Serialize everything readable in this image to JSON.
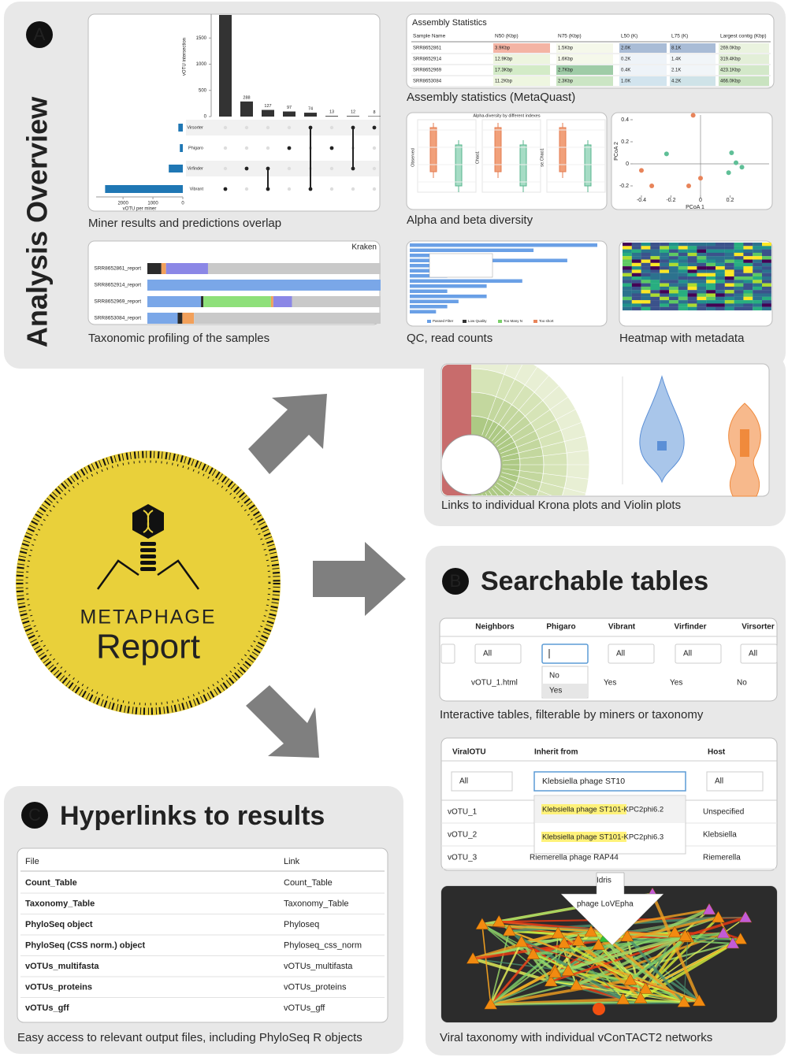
{
  "panel_a": {
    "letter": "A",
    "title": "Analysis Overview",
    "captions": [
      "Miner results and predictions overlap",
      "Assembly statistics (MetaQuast)",
      "Alpha and beta diversity",
      "Taxonomic profiling of the samples",
      "QC, read counts",
      "Heatmap with metadata",
      "Links to individual Krona plots and Violin plots"
    ],
    "upset": {
      "type": "bar",
      "y_label": "vOTU intersection",
      "ylim": [
        0,
        2000
      ],
      "yticks": [
        0,
        500,
        1000,
        1500
      ],
      "values": [
        1940,
        288,
        127,
        97,
        74,
        13,
        12,
        8
      ],
      "value_labels": [
        null,
        "288",
        "127",
        "97",
        "74",
        "13",
        "12",
        "8"
      ],
      "color": "#333333",
      "sets": {
        "type": "bar",
        "categories": [
          "Virsorter",
          "Phigaro",
          "Virfinder",
          "Vibrant"
        ],
        "values": [
          150,
          100,
          470,
          2600
        ],
        "xlim": [
          0,
          2900
        ],
        "xticks": [
          0,
          1000,
          2000
        ],
        "x_label": "vOTU per miner",
        "color": "#1f77b4"
      }
    },
    "assembly": {
      "title": "Assembly Statistics",
      "headers": [
        "Sample Name",
        "N50 (Kbp)",
        "N75 (Kbp)",
        "L50 (K)",
        "L75 (K)",
        "Largest contig (Kbp)"
      ],
      "rows": [
        [
          "SRR8652861",
          "3.9Kbp",
          "1.5Kbp",
          "2.0K",
          "8.1K",
          "269.0Kbp"
        ],
        [
          "SRR8652914",
          "12.9Kbp",
          "1.6Kbp",
          "0.2K",
          "1.4K",
          "319.4Kbp"
        ],
        [
          "SRR8652969",
          "17.3Kbp",
          "2.7Kbp",
          "0.4K",
          "2.1K",
          "423.1Kbp"
        ],
        [
          "SRR8653084",
          "11.2Kbp",
          "2.3Kbp",
          "1.0K",
          "4.2K",
          "466.0Kbp"
        ]
      ],
      "cell_colors": [
        [
          "#f4b4a4",
          "#f5f8ea",
          "#a9bcd6",
          "#a9bcd6",
          "#eaf3df"
        ],
        [
          "#edf5df",
          "#f5f8ea",
          "#eef3f8",
          "#f1f5f8",
          "#e3efd8"
        ],
        [
          "#d3ebc7",
          "#9fcca7",
          "#eef3f8",
          "#f1f5f8",
          "#d3e8c9"
        ],
        [
          "#eef6e0",
          "#cbe5c4",
          "#d2e4ee",
          "#cfe3e8",
          "#c9e3c0"
        ]
      ]
    },
    "alpha": {
      "title": "Alpha-diversity by different indexes",
      "y_labels": [
        "Observed",
        "Chao1",
        "se.Chao1"
      ]
    },
    "pcoa": {
      "type": "scatter",
      "x_label": "PCoA 1",
      "y_label": "PCoA 2",
      "xlim": [
        -0.45,
        0.45
      ],
      "ylim": [
        -0.3,
        0.45
      ],
      "xticks": [
        -0.4,
        -0.2,
        0,
        0.2
      ],
      "yticks": [
        -0.2,
        0,
        0.2,
        0.4
      ],
      "series": [
        {
          "color": "#e8845a",
          "x": [
            -0.05,
            -0.4,
            -0.33,
            -0.08,
            0
          ],
          "values": [
            0.44,
            -0.06,
            -0.2,
            -0.2,
            -0.13
          ]
        },
        {
          "color": "#5fbf97",
          "x": [
            -0.23,
            0.21,
            0.24,
            0.28,
            0.19
          ],
          "values": [
            0.09,
            0.1,
            0.01,
            -0.03,
            -0.08
          ]
        }
      ]
    },
    "kraken": {
      "type": "bar",
      "title": "Kraken",
      "categories": [
        "SRR8652861_report",
        "SRR8652914_report",
        "SRR8652969_report",
        "SRR8653084_report"
      ],
      "xlim": [
        0,
        100
      ],
      "series": [
        {
          "color": "#7aa7e8",
          "values": [
            0,
            100,
            23,
            13
          ]
        },
        {
          "color": "#2b2b2b",
          "values": [
            6,
            0,
            1,
            2
          ]
        },
        {
          "color": "#8ee07a",
          "values": [
            0,
            0,
            29,
            0
          ]
        },
        {
          "color": "#f2a05a",
          "values": [
            2,
            0,
            1,
            5
          ]
        },
        {
          "color": "#8b87e6",
          "values": [
            18,
            0,
            8,
            0
          ]
        },
        {
          "color": "#c9c9c9",
          "values": [
            74,
            0,
            38,
            80
          ]
        }
      ]
    },
    "qc": {
      "type": "bar",
      "color": "#6aa0e6",
      "xlim": [
        0,
        100
      ],
      "values": [
        100,
        66,
        41,
        84,
        41,
        20,
        20,
        60,
        41,
        20,
        41,
        26,
        20,
        14
      ],
      "legend": [
        "Passed Filter",
        "Low Quality",
        "Too Many N",
        "Too short"
      ],
      "legend_colors": [
        "#6aa0e6",
        "#333333",
        "#7ad06a",
        "#e8845a"
      ]
    }
  },
  "logo": {
    "name": "METAPHAGE",
    "subtitle": "Report"
  },
  "panel_b": {
    "letter": "B",
    "title": "Searchable tables",
    "table1": {
      "headers": [
        "Neighbors",
        "Phigaro",
        "Vibrant",
        "Virfinder",
        "Virsorter"
      ],
      "filter_placeholder": "All",
      "dropdown": [
        "No",
        "Yes"
      ],
      "row": [
        "vOTU_1.html",
        "Yes",
        "Yes",
        "No"
      ]
    },
    "caption1": "Interactive tables, filterable by miners or taxonomy",
    "table2": {
      "headers": [
        "ViralOTU",
        "Inherit from",
        "Host"
      ],
      "filter_placeholder": "All",
      "search": "Klebsiella phage ST10",
      "suggestions": [
        "Klebsiella phage ST101-KPC2phi6.2",
        "Klebsiella phage ST101-KPC2phi6.3"
      ],
      "rows": [
        [
          "vOTU_1",
          null,
          "Unspecified"
        ],
        [
          "vOTU_2",
          null,
          "Klebsiella"
        ],
        [
          "vOTU_3",
          "Riemerella phage RAP44",
          "Riemerella"
        ]
      ]
    },
    "network": {
      "labels": [
        "Idris",
        "phage LoVEpha"
      ]
    },
    "caption2": "Viral taxonomy with individual vConTACT2 networks"
  },
  "panel_c": {
    "letter": "C",
    "title": "Hyperlinks to results",
    "headers": [
      "File",
      "Link"
    ],
    "rows": [
      [
        "Count_Table",
        "Count_Table"
      ],
      [
        "Taxonomy_Table",
        "Taxonomy_Table"
      ],
      [
        "PhyloSeq object",
        "Phyloseq"
      ],
      [
        "PhyloSeq (CSS norm.) object",
        "Phyloseq_css_norm"
      ],
      [
        "vOTUs_multifasta",
        "vOTUs_multifasta"
      ],
      [
        "vOTUs_proteins",
        "vOTUs_proteins"
      ],
      [
        "vOTUs_gff",
        "vOTUs_gff"
      ]
    ],
    "caption": "Easy access to relevant output files, including PhyloSeq R objects"
  }
}
